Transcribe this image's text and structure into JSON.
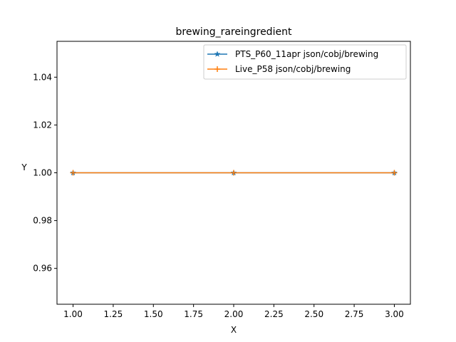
{
  "chart_data": {
    "type": "line",
    "title": "brewing_rareingredient",
    "xlabel": "X",
    "ylabel": "Y",
    "xlim": [
      0.9,
      3.1
    ],
    "ylim": [
      0.945,
      1.055
    ],
    "xticks": [
      1.0,
      1.25,
      1.5,
      1.75,
      2.0,
      2.25,
      2.5,
      2.75,
      3.0
    ],
    "xtick_labels": [
      "1.00",
      "1.25",
      "1.50",
      "1.75",
      "2.00",
      "2.25",
      "2.50",
      "2.75",
      "3.00"
    ],
    "yticks": [
      0.96,
      0.98,
      1.0,
      1.02,
      1.04
    ],
    "ytick_labels": [
      "0.96",
      "0.98",
      "1.00",
      "1.02",
      "1.04"
    ],
    "grid": false,
    "legend_position": "upper right",
    "series": [
      {
        "name": "PTS_P60_11apr json/cobj/brewing",
        "color": "#1f77b4",
        "marker": "star",
        "x": [
          1,
          2,
          3
        ],
        "y": [
          1.0,
          1.0,
          1.0
        ]
      },
      {
        "name": "Live_P58 json/cobj/brewing",
        "color": "#ff7f0e",
        "marker": "plus",
        "x": [
          1,
          2,
          3
        ],
        "y": [
          1.0,
          1.0,
          1.0
        ]
      }
    ]
  }
}
